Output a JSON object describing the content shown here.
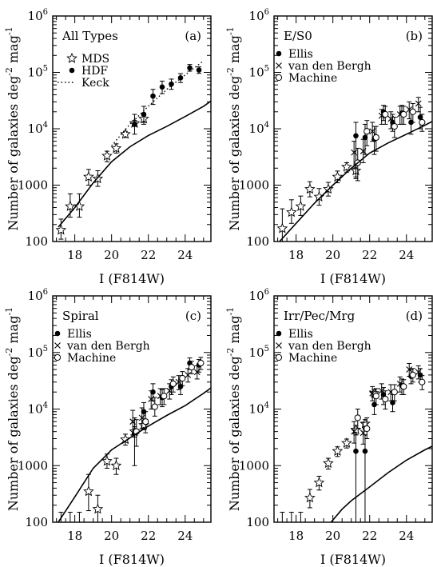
{
  "chart_data": [
    {
      "panel_letter": "(a)",
      "panel_title": "All Types",
      "type": "scatter",
      "xlabel": "I (F814W)",
      "ylabel": "Number of galaxies deg^-2 mag^-1",
      "xlim": [
        16.8,
        25.4
      ],
      "ylim": [
        100,
        1000000
      ],
      "yscale": "log",
      "x_ticks": [
        18,
        20,
        22,
        24
      ],
      "y_ticks": [
        "100",
        "1000",
        "10^4",
        "10^5",
        "10^6"
      ],
      "legend": [
        "MDS",
        "HDF",
        "Keck"
      ],
      "series": [
        {
          "name": "MDS",
          "marker": "star",
          "x": [
            17.25,
            17.75,
            18.25,
            18.75,
            19.25,
            19.75,
            20.25,
            20.75,
            21.25,
            21.75
          ],
          "y": [
            160,
            420,
            420,
            1400,
            1300,
            3300,
            4500,
            8000,
            12500,
            15000
          ],
          "err_lo": [
            110,
            270,
            270,
            1000,
            950,
            2600,
            3700,
            7000,
            11000,
            13000
          ],
          "err_hi": [
            250,
            700,
            700,
            1900,
            1800,
            4000,
            5400,
            9000,
            14000,
            17000
          ]
        },
        {
          "name": "HDF",
          "marker": "dot",
          "x": [
            21.25,
            21.75,
            22.25,
            22.75,
            23.25,
            23.75,
            24.25,
            24.75
          ],
          "y": [
            12000,
            18000,
            38000,
            55000,
            62000,
            80000,
            120000,
            110000
          ],
          "err_lo": [
            8000,
            12000,
            27000,
            42000,
            50000,
            66000,
            105000,
            96000
          ],
          "err_hi": [
            18000,
            25000,
            50000,
            70000,
            76000,
            95000,
            138000,
            125000
          ]
        },
        {
          "name": "Keck",
          "line": "dotted",
          "x": [
            20.0,
            21.0,
            22.0,
            23.0,
            24.0,
            25.0
          ],
          "y": [
            5000,
            12000,
            25000,
            50000,
            90000,
            160000
          ]
        },
        {
          "name": "model",
          "line": "solid",
          "x": [
            17.1,
            18.0,
            19.0,
            20.0,
            21.0,
            22.0,
            23.0,
            24.0,
            25.0,
            25.4
          ],
          "y": [
            180,
            400,
            1100,
            2600,
            4800,
            7600,
            11000,
            16500,
            25000,
            31000
          ]
        }
      ]
    },
    {
      "panel_letter": "(b)",
      "panel_title": "E/S0",
      "type": "scatter",
      "xlabel": "I (F814W)",
      "ylabel": "Number of galaxies deg^-2 mag^-1",
      "xlim": [
        16.8,
        25.4
      ],
      "ylim": [
        100,
        1000000
      ],
      "yscale": "log",
      "x_ticks": [
        18,
        20,
        22,
        24
      ],
      "y_ticks": [
        "100",
        "1000",
        "10^4",
        "10^5",
        "10^6"
      ],
      "legend": [
        "Ellis",
        "van den Bergh",
        "Machine"
      ],
      "series": [
        {
          "name": "MDS",
          "marker": "star",
          "x": [
            17.25,
            17.75,
            18.25,
            18.75,
            19.25,
            19.75,
            20.25,
            20.75,
            21.25
          ],
          "y": [
            170,
            330,
            420,
            850,
            620,
            850,
            1400,
            2100,
            1800
          ],
          "err_lo": [
            100,
            210,
            290,
            620,
            440,
            640,
            1100,
            1700,
            1400
          ],
          "err_hi": [
            380,
            550,
            640,
            1150,
            870,
            1120,
            1780,
            2500,
            2300
          ]
        },
        {
          "name": "Ellis",
          "marker": "dot",
          "x": [
            21.25,
            21.75,
            22.25,
            22.75,
            23.25,
            23.75,
            24.25,
            24.75
          ],
          "y": [
            7500,
            7000,
            6500,
            20000,
            13000,
            19000,
            13000,
            16000
          ],
          "err_lo": [
            1300,
            3500,
            3500,
            14000,
            9000,
            12000,
            8000,
            10000
          ],
          "err_hi": [
            13000,
            12000,
            11000,
            26000,
            18000,
            26000,
            20000,
            24000
          ]
        },
        {
          "name": "van den Bergh",
          "marker": "x",
          "x": [
            21.15,
            21.65,
            22.15,
            22.65,
            23.15,
            23.65,
            24.15,
            24.65
          ],
          "y": [
            3800,
            4000,
            9000,
            17000,
            15000,
            18000,
            22000,
            28000
          ],
          "err_lo": [
            2000,
            2500,
            6000,
            12000,
            10000,
            12000,
            15000,
            20000
          ],
          "err_hi": [
            6000,
            6500,
            13000,
            22000,
            20000,
            25000,
            30000,
            36000
          ]
        },
        {
          "name": "Machine",
          "marker": "circle",
          "x": [
            21.35,
            21.85,
            22.35,
            22.85,
            23.35,
            23.85,
            24.35,
            24.85
          ],
          "y": [
            2500,
            9000,
            7000,
            18000,
            11000,
            18000,
            20000,
            13000
          ],
          "err_lo": [
            1200,
            5000,
            4000,
            12000,
            7000,
            12000,
            13000,
            9000
          ],
          "err_hi": [
            4500,
            14000,
            11000,
            25000,
            16000,
            25000,
            28000,
            18000
          ]
        },
        {
          "name": "model",
          "line": "solid",
          "x": [
            17.1,
            18.0,
            19.0,
            20.0,
            21.0,
            22.0,
            23.0,
            24.0,
            25.0,
            25.4
          ],
          "y": [
            100,
            210,
            480,
            1000,
            2000,
            3700,
            5600,
            8000,
            11500,
            13500
          ]
        }
      ]
    },
    {
      "panel_letter": "(c)",
      "panel_title": "Spiral",
      "type": "scatter",
      "xlabel": "I (F814W)",
      "ylabel": "Number of galaxies deg^-2 mag^-1",
      "xlim": [
        16.8,
        25.4
      ],
      "ylim": [
        100,
        1000000
      ],
      "yscale": "log",
      "x_ticks": [
        18,
        20,
        22,
        24
      ],
      "y_ticks": [
        "100",
        "1000",
        "10^4",
        "10^5",
        "10^6"
      ],
      "legend": [
        "Ellis",
        "van den Bergh",
        "Machine"
      ],
      "series": [
        {
          "name": "MDS",
          "marker": "star",
          "x": [
            18.75,
            19.25,
            19.75,
            20.25,
            20.75,
            21.25,
            21.75
          ],
          "y": [
            350,
            170,
            1200,
            1000,
            2900,
            4000,
            5200
          ],
          "err_lo": [
            160,
            100,
            900,
            700,
            2300,
            3200,
            4300
          ],
          "err_hi": [
            700,
            300,
            1600,
            1350,
            3600,
            4900,
            6300
          ]
        },
        {
          "name": "upper-limits",
          "marker": "none",
          "x": [
            17.25,
            17.75,
            18.25
          ],
          "y": [
            150,
            150,
            150
          ],
          "err_lo": [
            100,
            100,
            100
          ],
          "err_hi": [
            150,
            150,
            150
          ]
        },
        {
          "name": "Ellis",
          "marker": "dot",
          "x": [
            21.25,
            21.75,
            22.25,
            22.75,
            23.25,
            23.75,
            24.25,
            24.75
          ],
          "y": [
            3800,
            9000,
            20000,
            16000,
            25000,
            25000,
            65000,
            60000
          ],
          "err_lo": [
            1000,
            6000,
            14000,
            11000,
            18000,
            18000,
            50000,
            45000
          ],
          "err_hi": [
            7000,
            13000,
            28000,
            22000,
            33000,
            33000,
            80000,
            75000
          ]
        },
        {
          "name": "van den Bergh",
          "marker": "x",
          "x": [
            21.15,
            21.65,
            22.15,
            22.65,
            23.15,
            23.65,
            24.15,
            24.65
          ],
          "y": [
            6000,
            7000,
            15000,
            17000,
            21000,
            30000,
            40000,
            45000
          ],
          "err_lo": [
            3500,
            4500,
            10000,
            12000,
            15000,
            22000,
            30000,
            34000
          ],
          "err_hi": [
            9500,
            10500,
            21000,
            23000,
            28000,
            39000,
            52000,
            58000
          ]
        },
        {
          "name": "Machine",
          "marker": "circle",
          "x": [
            21.35,
            21.85,
            22.35,
            22.85,
            23.35,
            23.85,
            24.35,
            24.85
          ],
          "y": [
            4000,
            6000,
            11000,
            17000,
            28000,
            35000,
            55000,
            65000
          ],
          "err_lo": [
            2200,
            3800,
            7500,
            12000,
            20000,
            26000,
            42000,
            50000
          ],
          "err_hi": [
            6500,
            9000,
            16000,
            23000,
            37000,
            46000,
            70000,
            82000
          ]
        },
        {
          "name": "model",
          "line": "solid",
          "x": [
            17.1,
            18.0,
            19.0,
            20.0,
            21.0,
            22.0,
            23.0,
            24.0,
            25.0,
            25.4
          ],
          "y": [
            100,
            280,
            900,
            1900,
            3100,
            5000,
            7700,
            11500,
            19000,
            23500
          ]
        }
      ]
    },
    {
      "panel_letter": "(d)",
      "panel_title": "Irr/Pec/Mrg",
      "type": "scatter",
      "xlabel": "I (F814W)",
      "ylabel": "Number of galaxies deg^-2 mag^-1",
      "xlim": [
        16.8,
        25.4
      ],
      "ylim": [
        100,
        1000000
      ],
      "yscale": "log",
      "x_ticks": [
        18,
        20,
        22,
        24
      ],
      "y_ticks": [
        "100",
        "1000",
        "10^4",
        "10^5",
        "10^6"
      ],
      "legend": [
        "Ellis",
        "van den Bergh",
        "Machine"
      ],
      "series": [
        {
          "name": "MDS",
          "marker": "star",
          "x": [
            18.75,
            19.25,
            19.75,
            20.25,
            20.75,
            21.25,
            21.75,
            22.25
          ],
          "y": [
            270,
            500,
            1100,
            1800,
            2500,
            4300,
            5500,
            19000
          ],
          "err_lo": [
            180,
            370,
            870,
            1450,
            2050,
            3500,
            4500,
            16000
          ],
          "err_hi": [
            380,
            650,
            1350,
            2150,
            2950,
            5100,
            6500,
            22000
          ]
        },
        {
          "name": "upper-limits",
          "marker": "none",
          "x": [
            17.25,
            17.75,
            18.25
          ],
          "y": [
            150,
            150,
            150
          ],
          "err_lo": [
            100,
            100,
            100
          ],
          "err_hi": [
            150,
            150,
            150
          ]
        },
        {
          "name": "Ellis",
          "marker": "dot",
          "x": [
            21.25,
            21.75,
            22.25,
            22.75,
            23.25,
            23.75,
            24.25,
            24.75
          ],
          "y": [
            1800,
            1800,
            12000,
            18000,
            13000,
            26000,
            38000,
            40000
          ],
          "err_lo": [
            100,
            100,
            8000,
            12000,
            9000,
            18000,
            28000,
            30000
          ],
          "err_hi": [
            3500,
            3500,
            17000,
            24000,
            18000,
            34000,
            50000,
            52000
          ]
        },
        {
          "name": "van den Bergh",
          "marker": "x",
          "x": [
            21.15,
            21.65,
            22.15,
            22.65,
            23.15,
            23.65,
            24.15,
            24.65
          ],
          "y": [
            4000,
            3800,
            19000,
            21000,
            20000,
            28000,
            50000,
            45000
          ],
          "err_lo": [
            2500,
            2400,
            14000,
            15000,
            14000,
            20000,
            38000,
            34000
          ],
          "err_hi": [
            6000,
            5800,
            25000,
            28000,
            27000,
            37000,
            64000,
            58000
          ]
        },
        {
          "name": "Machine",
          "marker": "circle",
          "x": [
            21.35,
            21.85,
            22.35,
            22.85,
            23.35,
            23.85,
            24.35,
            24.85
          ],
          "y": [
            7000,
            4500,
            17000,
            15000,
            20000,
            25000,
            40000,
            30000
          ],
          "err_lo": [
            4500,
            3000,
            12000,
            10000,
            14000,
            18000,
            30000,
            22000
          ],
          "err_hi": [
            10000,
            7000,
            23000,
            21000,
            27000,
            33000,
            52000,
            39000
          ]
        },
        {
          "name": "model",
          "line": "solid",
          "x": [
            19.9,
            20.5,
            21.0,
            22.0,
            23.0,
            24.0,
            25.0,
            25.4
          ],
          "y": [
            100,
            170,
            240,
            420,
            750,
            1250,
            1900,
            2200
          ]
        }
      ]
    }
  ]
}
